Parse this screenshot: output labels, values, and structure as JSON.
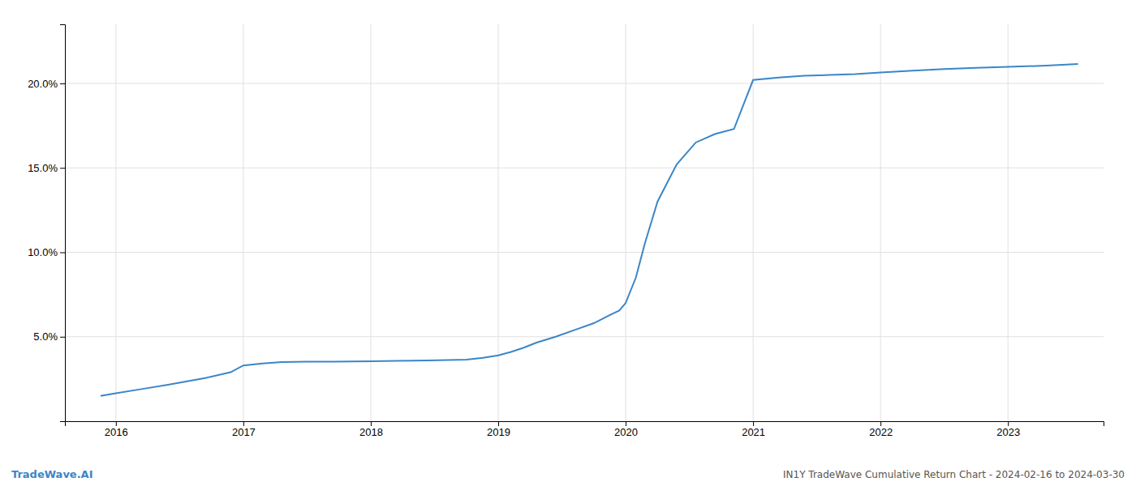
{
  "chart_data": {
    "type": "line",
    "title": "IN1Y TradeWave Cumulative Return Chart - 2024-02-16 to 2024-03-30",
    "annotations": [
      {
        "text": "TradeWave.AI"
      }
    ],
    "color": "#3a86c8",
    "x": [
      2015.88,
      2016.0,
      2016.2,
      2016.4,
      2016.7,
      2016.9,
      2017.0,
      2017.15,
      2017.3,
      2017.5,
      2017.7,
      2017.85,
      2018.0,
      2018.2,
      2018.45,
      2018.6,
      2018.75,
      2018.88,
      2019.0,
      2019.1,
      2019.2,
      2019.3,
      2019.45,
      2019.6,
      2019.75,
      2019.88,
      2019.95,
      2020.0,
      2020.08,
      2020.15,
      2020.25,
      2020.4,
      2020.55,
      2020.7,
      2020.85,
      2021.0,
      2021.2,
      2021.4,
      2021.6,
      2021.8,
      2022.0,
      2022.25,
      2022.5,
      2022.75,
      2023.0,
      2023.3,
      2023.55
    ],
    "values": [
      1.5,
      1.65,
      1.9,
      2.15,
      2.55,
      2.9,
      3.3,
      3.42,
      3.5,
      3.52,
      3.53,
      3.54,
      3.55,
      3.57,
      3.6,
      3.62,
      3.65,
      3.75,
      3.9,
      4.1,
      4.35,
      4.65,
      5.0,
      5.4,
      5.8,
      6.3,
      6.55,
      7.0,
      8.5,
      10.5,
      13.0,
      15.2,
      16.5,
      17.0,
      17.3,
      20.2,
      20.35,
      20.45,
      20.5,
      20.55,
      20.65,
      20.75,
      20.85,
      20.92,
      20.98,
      21.05,
      21.15
    ],
    "xlim": [
      2015.6,
      2023.75
    ],
    "ylim": [
      0.0,
      23.5
    ],
    "xticks": [
      2016,
      2017,
      2018,
      2019,
      2020,
      2021,
      2022,
      2023
    ],
    "yticks": [
      {
        "value": 5.0,
        "label": "5.0%"
      },
      {
        "value": 10.0,
        "label": "10.0%"
      },
      {
        "value": 15.0,
        "label": "15.0%"
      },
      {
        "value": 20.0,
        "label": "20.0%"
      }
    ],
    "grid": true
  }
}
